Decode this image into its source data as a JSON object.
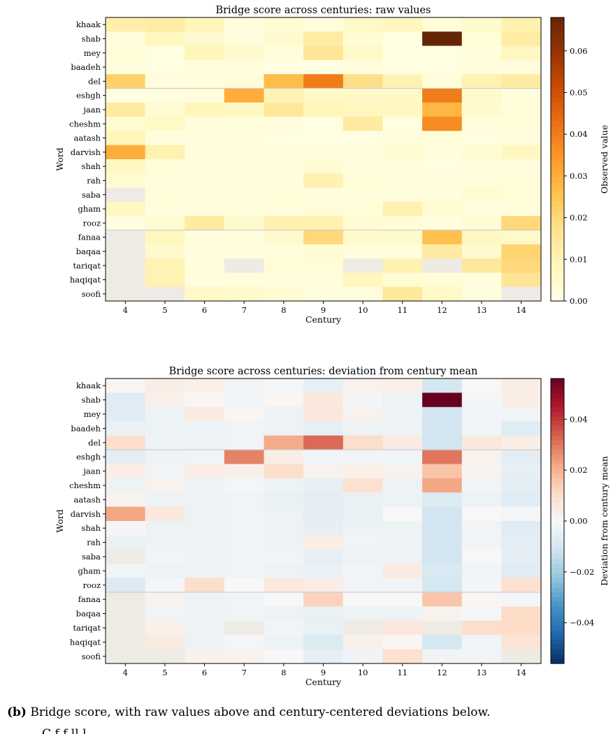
{
  "colors": {
    "raw_scale": "YlOrBr",
    "dev_scale": "RdBu_r",
    "missing": "#eeebe5",
    "separator": "#cfcfcf"
  },
  "chart_data": [
    {
      "type": "heatmap",
      "title": "Bridge score across centuries: raw values",
      "xlabel": "Century",
      "ylabel": "Word",
      "x": [
        "4",
        "5",
        "6",
        "7",
        "8",
        "9",
        "10",
        "11",
        "12",
        "13",
        "14"
      ],
      "y": [
        "khaak",
        "shab",
        "mey",
        "baadeh",
        "del",
        "eshgh",
        "jaan",
        "cheshm",
        "aatash",
        "darvish",
        "shah",
        "rah",
        "saba",
        "gham",
        "rooz",
        "fanaa",
        "baqaa",
        "tariqat",
        "haqiqat",
        "soofi"
      ],
      "colorbar": {
        "label": "Observed value",
        "range": [
          0,
          0.068
        ],
        "ticks": [
          "0.00",
          "0.01",
          "0.02",
          "0.03",
          "0.04",
          "0.05",
          "0.06"
        ],
        "tick_values": [
          0,
          0.01,
          0.02,
          0.03,
          0.04,
          0.05,
          0.06
        ]
      },
      "group_separators_after_rows": [
        4,
        14
      ],
      "values": [
        [
          0.012,
          0.013,
          0.009,
          0.002,
          0.004,
          0.002,
          0.006,
          0.008,
          0.003,
          0.005,
          0.011
        ],
        [
          0.002,
          0.008,
          0.005,
          0.002,
          0.005,
          0.013,
          0.004,
          0.001,
          0.068,
          0.003,
          0.013
        ],
        [
          0.003,
          0.001,
          0.009,
          0.005,
          0.002,
          0.016,
          0.006,
          0.001,
          0.001,
          0.002,
          0.007
        ],
        [
          0.002,
          0.001,
          0.002,
          0.002,
          0.001,
          0.001,
          0.002,
          0.001,
          0.001,
          0.002,
          0.002
        ],
        [
          0.022,
          0.002,
          0.002,
          0.003,
          0.027,
          0.04,
          0.018,
          0.01,
          0.002,
          0.01,
          0.013
        ],
        [
          0.001,
          0.001,
          0.002,
          0.03,
          0.01,
          0.006,
          0.006,
          0.006,
          0.04,
          0.005,
          0.002
        ],
        [
          0.014,
          0.004,
          0.009,
          0.007,
          0.015,
          0.009,
          0.008,
          0.007,
          0.028,
          0.005,
          0.003
        ],
        [
          0.004,
          0.006,
          0.002,
          0.002,
          0.002,
          0.001,
          0.014,
          0.001,
          0.037,
          0.002,
          0.003
        ],
        [
          0.009,
          0.002,
          0.002,
          0.002,
          0.001,
          0.001,
          0.001,
          0.002,
          0.003,
          0.001,
          0.002
        ],
        [
          0.03,
          0.011,
          0.002,
          0.002,
          0.002,
          0.002,
          0.002,
          0.004,
          0.002,
          0.004,
          0.007
        ],
        [
          0.007,
          0.003,
          0.002,
          0.002,
          0.002,
          0.004,
          0.002,
          0.002,
          0.001,
          0.002,
          0.002
        ],
        [
          0.004,
          0.002,
          0.002,
          0.002,
          0.002,
          0.011,
          0.003,
          0.002,
          0.002,
          0.002,
          0.003
        ],
        [
          null,
          0.003,
          0.002,
          0.002,
          0.003,
          0.002,
          0.002,
          0.002,
          0.002,
          0.004,
          0.003
        ],
        [
          0.007,
          0.002,
          0.002,
          0.002,
          0.002,
          0.003,
          0.003,
          0.011,
          0.004,
          0.002,
          0.002
        ],
        [
          0.001,
          0.004,
          0.014,
          0.005,
          0.011,
          0.011,
          0.004,
          0.003,
          0.002,
          0.004,
          0.02
        ],
        [
          null,
          0.008,
          0.002,
          0.002,
          0.005,
          0.02,
          0.005,
          0.005,
          0.026,
          0.007,
          0.006
        ],
        [
          null,
          0.005,
          0.002,
          0.002,
          0.002,
          0.004,
          0.002,
          0.002,
          0.014,
          0.005,
          0.021
        ],
        [
          null,
          0.01,
          0.002,
          null,
          0.003,
          0.003,
          null,
          0.011,
          null,
          0.015,
          0.02
        ],
        [
          null,
          0.01,
          0.002,
          0.002,
          0.002,
          0.002,
          0.008,
          0.004,
          0.003,
          0.002,
          0.016
        ],
        [
          null,
          null,
          0.006,
          0.005,
          0.004,
          0.002,
          0.002,
          0.015,
          0.006,
          0.002,
          null
        ]
      ]
    },
    {
      "type": "heatmap",
      "title": "Bridge score across centuries: deviation from century mean",
      "xlabel": "Century",
      "ylabel": "Word",
      "x": [
        "4",
        "5",
        "6",
        "7",
        "8",
        "9",
        "10",
        "11",
        "12",
        "13",
        "14"
      ],
      "y": [
        "khaak",
        "shab",
        "mey",
        "baadeh",
        "del",
        "eshgh",
        "jaan",
        "cheshm",
        "aatash",
        "darvish",
        "shah",
        "rah",
        "saba",
        "gham",
        "rooz",
        "fanaa",
        "baqaa",
        "tariqat",
        "haqiqat",
        "soofi"
      ],
      "colorbar": {
        "label": "Deviation from century mean",
        "range": [
          -0.056,
          0.056
        ],
        "ticks": [
          "−0.04",
          "−0.02",
          "0.00",
          "0.02",
          "0.04"
        ],
        "tick_values": [
          -0.04,
          -0.02,
          0,
          0.02,
          0.04
        ]
      },
      "group_separators_after_rows": [
        4,
        14
      ],
      "values": [
        [
          0.001,
          0.004,
          0.003,
          -0.002,
          -0.001,
          -0.005,
          0.002,
          0.003,
          -0.01,
          0.0,
          0.004
        ],
        [
          -0.007,
          0.003,
          0.001,
          -0.002,
          0.001,
          0.006,
          -0.001,
          -0.003,
          0.056,
          -0.001,
          0.004
        ],
        [
          -0.007,
          -0.003,
          0.005,
          0.001,
          -0.003,
          0.006,
          0.002,
          -0.003,
          -0.011,
          -0.002,
          -0.002
        ],
        [
          -0.004,
          -0.003,
          -0.003,
          -0.002,
          -0.003,
          -0.005,
          -0.003,
          -0.003,
          -0.011,
          -0.002,
          -0.007
        ],
        [
          0.01,
          -0.003,
          -0.003,
          -0.002,
          0.021,
          0.032,
          0.01,
          0.005,
          -0.011,
          0.006,
          0.004
        ],
        [
          -0.006,
          -0.003,
          -0.002,
          0.028,
          0.004,
          -0.002,
          -0.002,
          -0.002,
          0.03,
          0.002,
          -0.006
        ],
        [
          0.004,
          -0.002,
          0.004,
          0.003,
          0.01,
          0.002,
          0.003,
          0.002,
          0.016,
          0.002,
          -0.005
        ],
        [
          -0.003,
          0.002,
          -0.003,
          -0.001,
          -0.003,
          -0.005,
          0.009,
          -0.003,
          0.022,
          -0.002,
          -0.006
        ],
        [
          0.002,
          -0.003,
          -0.003,
          -0.002,
          -0.004,
          -0.006,
          -0.004,
          -0.003,
          -0.008,
          -0.003,
          -0.007
        ],
        [
          0.022,
          0.006,
          -0.003,
          -0.002,
          -0.003,
          -0.006,
          -0.004,
          0.0,
          -0.011,
          0.0,
          -0.001
        ],
        [
          -0.001,
          -0.003,
          -0.003,
          -0.002,
          -0.003,
          -0.005,
          -0.003,
          -0.003,
          -0.011,
          -0.002,
          -0.007
        ],
        [
          -0.004,
          -0.003,
          -0.003,
          -0.002,
          -0.003,
          0.004,
          -0.002,
          -0.003,
          -0.011,
          -0.002,
          -0.006
        ],
        [
          null,
          -0.002,
          -0.003,
          -0.002,
          -0.002,
          -0.005,
          -0.003,
          -0.003,
          -0.011,
          0.0,
          -0.006
        ],
        [
          -0.002,
          -0.003,
          -0.003,
          -0.002,
          -0.003,
          -0.004,
          -0.002,
          0.005,
          -0.009,
          -0.002,
          -0.007
        ],
        [
          -0.008,
          -0.001,
          0.01,
          0.0,
          0.006,
          0.004,
          -0.002,
          -0.002,
          -0.01,
          -0.001,
          0.009
        ],
        [
          null,
          0.002,
          -0.003,
          -0.002,
          0.0,
          0.013,
          0.0,
          0.0,
          0.016,
          0.001,
          -0.001
        ],
        [
          null,
          -0.002,
          -0.003,
          -0.002,
          -0.003,
          -0.004,
          -0.003,
          -0.003,
          0.002,
          -0.001,
          0.011
        ],
        [
          null,
          0.003,
          -0.003,
          null,
          -0.002,
          -0.004,
          null,
          0.006,
          null,
          0.01,
          0.011
        ],
        [
          null,
          0.005,
          -0.003,
          -0.001,
          -0.003,
          -0.008,
          0.003,
          0.001,
          -0.01,
          -0.002,
          0.008
        ],
        [
          null,
          null,
          0.002,
          0.002,
          0.0,
          -0.005,
          -0.002,
          0.009,
          -0.002,
          -0.002,
          null
        ]
      ]
    }
  ],
  "caption": {
    "label": "(b)",
    "text": "Bridge score, with raw values above and century-centered deviations below.",
    "tail": "C                                             f        f ll      l"
  }
}
